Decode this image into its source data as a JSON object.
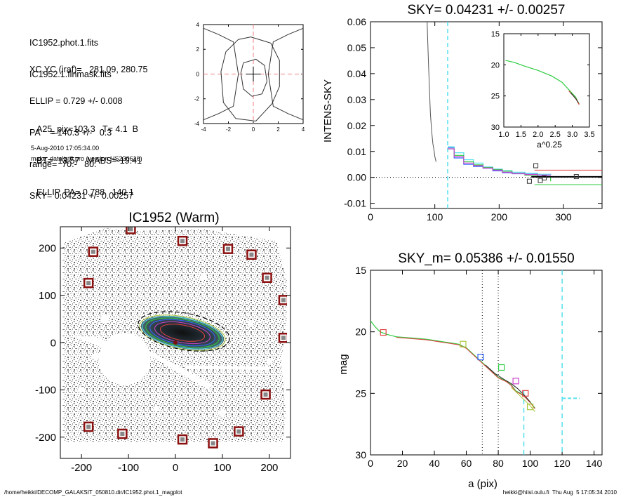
{
  "header": {
    "info_block_1": [
      "IC1952.phot.1.fits",
      "IC1952.1.finmask.fits"
    ],
    "info_block_2": [
      "XC,YC (iraf)=   281.09, 280.75",
      "ELLIP = 0.729 +/- 0.008",
      "PA    = 140.3 +/-   0.3",
      "range=  70.-   80.",
      "SKY= 0.04231 +/- 0.00257"
    ],
    "info_block_3": [
      "A25_pix=103.3   T= 4.1  B",
      "BT=  13.57   MABS=-19.41",
      "ELLIP, PA= 0.788   140.1"
    ],
    "timestamp": "5-Aug-2010 17:05:34.00",
    "program": "make_datalist0.pro (version HS230610)"
  },
  "footer": {
    "path": "/home/heikki/DECOMP_GALAKSIT_050810.dir/IC1952.phot.1_magplot",
    "user": "heikki@hiisi.oulu.fi  Thu Aug  5 17:05:34 2010"
  },
  "colors": {
    "cyan": "#55e0ee",
    "green": "#2ecc40",
    "blue": "#3366ff",
    "red": "#e04040",
    "magenta": "#cc44cc",
    "olive": "#a8c83c",
    "dark_red": "#8b1010"
  },
  "chart_data": [
    {
      "type": "line",
      "panel": "contour-inset",
      "title": "",
      "xlim": [
        -4,
        4
      ],
      "ylim": [
        -4,
        4
      ],
      "xticks": [
        "-4",
        "-2",
        "0",
        "2",
        "4"
      ],
      "yticks": [
        "-4",
        "-2",
        "0",
        "2",
        "4"
      ]
    },
    {
      "type": "line",
      "panel": "sky-profile",
      "title": "SKY= 0.04231 +/- 0.00257",
      "xlabel": "",
      "ylabel": "INTENS-SKY",
      "xlim": [
        0,
        360
      ],
      "ylim": [
        -0.012,
        0.06
      ],
      "xticks": [
        "0",
        "100",
        "200",
        "300"
      ],
      "yticks": [
        "-0.01",
        "0.00",
        "0.01",
        "0.02",
        "0.03",
        "0.04",
        "0.05",
        "0.06"
      ],
      "vline_x": 120,
      "steep_profile": {
        "x": [
          88,
          90,
          92,
          93,
          95,
          97,
          99,
          100,
          102
        ],
        "y": [
          0.06,
          0.045,
          0.032,
          0.025,
          0.018,
          0.013,
          0.01,
          0.008,
          0.006
        ]
      },
      "square_points": {
        "x": [
          247,
          257,
          264,
          270,
          320
        ],
        "y": [
          -0.0015,
          0.0045,
          -0.0012,
          -0.0002,
          0.0003
        ]
      },
      "inset": {
        "xlabel": "a^0.25",
        "xlim": [
          1.0,
          3.5
        ],
        "ylim": [
          30,
          15
        ],
        "xticks": [
          "1.0",
          "1.5",
          "2.0",
          "2.5",
          "3.0",
          "3.5"
        ],
        "yticks": [
          "15",
          "20",
          "25",
          "30"
        ],
        "profile": {
          "x": [
            1.05,
            1.3,
            1.6,
            2.0,
            2.4,
            2.7,
            2.9,
            3.0,
            3.1,
            3.15,
            3.2
          ],
          "y": [
            19.3,
            19.6,
            20.2,
            20.9,
            21.8,
            22.8,
            24.0,
            24.6,
            25.2,
            25.8,
            26.3
          ]
        }
      }
    },
    {
      "type": "scatter",
      "panel": "image",
      "title": "IC1952 (Warm)",
      "xlim": [
        -245,
        245
      ],
      "ylim": [
        -245,
        245
      ],
      "xticks": [
        "-200",
        "-100",
        "0",
        "100",
        "200"
      ],
      "yticks": [
        "-200",
        "-100",
        "0",
        "100",
        "200"
      ],
      "ellipse_pa": 140.3,
      "marked_stars": {
        "x": [
          -95,
          15,
          -175,
          112,
          162,
          -185,
          195,
          230,
          230,
          192,
          135,
          -185,
          -113,
          15,
          80
        ],
        "y": [
          240,
          215,
          192,
          198,
          186,
          126,
          137,
          90,
          10,
          -110,
          -188,
          -178,
          -193,
          -205,
          -213
        ]
      }
    },
    {
      "type": "line",
      "panel": "mag-profile",
      "title": "SKY_m=  0.05386 +/- 0.01550",
      "xlabel": "a (pix)",
      "ylabel": "mag",
      "xlim": [
        0,
        145
      ],
      "ylim": [
        30,
        15
      ],
      "xticks": [
        "0",
        "20",
        "40",
        "60",
        "80",
        "100",
        "120",
        "140"
      ],
      "yticks": [
        "15",
        "20",
        "25",
        "30"
      ],
      "dotted_vlines": [
        70,
        80
      ],
      "cyan_vlines": [
        96,
        120
      ],
      "profile": {
        "x": [
          0,
          3,
          6,
          10,
          16,
          25,
          35,
          45,
          55,
          60,
          65,
          70,
          75,
          80,
          85,
          88,
          91,
          94,
          97,
          100,
          103
        ],
        "y": [
          19.1,
          19.6,
          20.0,
          20.2,
          20.4,
          20.5,
          20.6,
          20.8,
          21.0,
          21.3,
          21.9,
          22.5,
          23.1,
          23.7,
          24.0,
          24.3,
          24.8,
          25.0,
          25.3,
          25.7,
          26.2
        ]
      },
      "square_points": {
        "x": [
          8,
          58,
          69,
          82,
          91,
          97,
          100
        ],
        "y": [
          20.05,
          21.0,
          22.05,
          22.9,
          24.0,
          25.0,
          26.1
        ]
      },
      "sky_level_mag": 25.4
    }
  ]
}
